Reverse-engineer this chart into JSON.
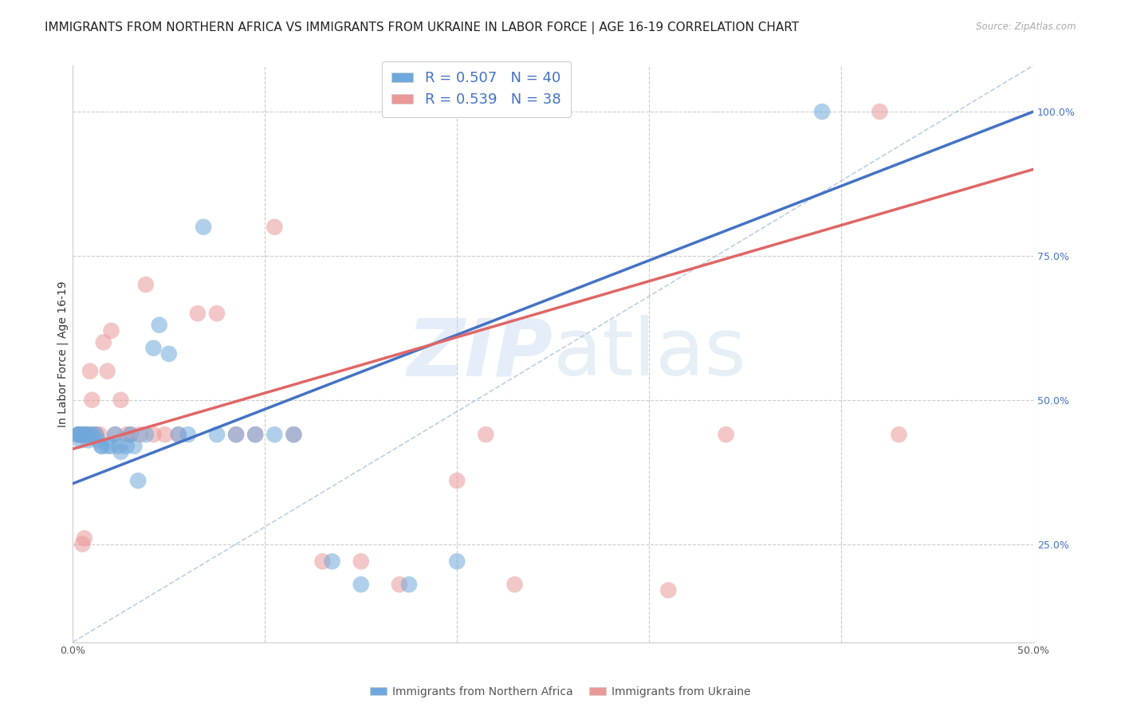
{
  "title": "IMMIGRANTS FROM NORTHERN AFRICA VS IMMIGRANTS FROM UKRAINE IN LABOR FORCE | AGE 16-19 CORRELATION CHART",
  "source": "Source: ZipAtlas.com",
  "ylabel": "In Labor Force | Age 16-19",
  "xlim": [
    0.0,
    0.5
  ],
  "ylim": [
    0.08,
    1.08
  ],
  "x_ticks": [
    0.0,
    0.1,
    0.2,
    0.3,
    0.4,
    0.5
  ],
  "x_tick_labels": [
    "0.0%",
    "",
    "",
    "",
    "",
    "50.0%"
  ],
  "y_tick_labels_right": [
    "25.0%",
    "50.0%",
    "75.0%",
    "100.0%"
  ],
  "y_ticks_right": [
    0.25,
    0.5,
    0.75,
    1.0
  ],
  "blue_R": 0.507,
  "blue_N": 40,
  "pink_R": 0.539,
  "pink_N": 38,
  "blue_color": "#6fa8dc",
  "pink_color": "#ea9999",
  "blue_line_color": "#4472c4",
  "pink_line_color": "#e06666",
  "diagonal_color": "#aac4e0",
  "legend_label_blue": "Immigrants from Northern Africa",
  "legend_label_pink": "Immigrants from Ukraine",
  "blue_scatter_x": [
    0.003,
    0.003,
    0.003,
    0.004,
    0.005,
    0.006,
    0.007,
    0.008,
    0.009,
    0.01,
    0.012,
    0.013,
    0.015,
    0.015,
    0.018,
    0.02,
    0.022,
    0.024,
    0.025,
    0.028,
    0.03,
    0.032,
    0.034,
    0.038,
    0.042,
    0.045,
    0.05,
    0.055,
    0.06,
    0.068,
    0.075,
    0.085,
    0.095,
    0.105,
    0.115,
    0.135,
    0.15,
    0.175,
    0.2,
    0.39
  ],
  "blue_scatter_y": [
    0.44,
    0.44,
    0.44,
    0.43,
    0.44,
    0.44,
    0.44,
    0.43,
    0.44,
    0.44,
    0.44,
    0.43,
    0.42,
    0.42,
    0.42,
    0.42,
    0.44,
    0.42,
    0.41,
    0.42,
    0.44,
    0.42,
    0.36,
    0.44,
    0.59,
    0.63,
    0.58,
    0.44,
    0.44,
    0.8,
    0.44,
    0.44,
    0.44,
    0.44,
    0.44,
    0.22,
    0.18,
    0.18,
    0.22,
    1.0
  ],
  "pink_scatter_x": [
    0.003,
    0.004,
    0.005,
    0.006,
    0.007,
    0.008,
    0.009,
    0.01,
    0.012,
    0.014,
    0.016,
    0.018,
    0.02,
    0.022,
    0.025,
    0.028,
    0.03,
    0.035,
    0.038,
    0.042,
    0.048,
    0.055,
    0.065,
    0.075,
    0.085,
    0.095,
    0.105,
    0.115,
    0.13,
    0.15,
    0.17,
    0.2,
    0.215,
    0.23,
    0.31,
    0.34,
    0.42,
    0.43
  ],
  "pink_scatter_y": [
    0.44,
    0.44,
    0.25,
    0.26,
    0.44,
    0.44,
    0.55,
    0.5,
    0.44,
    0.44,
    0.6,
    0.55,
    0.62,
    0.44,
    0.5,
    0.44,
    0.44,
    0.44,
    0.7,
    0.44,
    0.44,
    0.44,
    0.65,
    0.65,
    0.44,
    0.44,
    0.8,
    0.44,
    0.22,
    0.22,
    0.18,
    0.36,
    0.44,
    0.18,
    0.17,
    0.44,
    1.0,
    0.44
  ],
  "watermark_zip": "ZIP",
  "watermark_atlas": "atlas",
  "title_fontsize": 11,
  "axis_label_fontsize": 10,
  "tick_fontsize": 9,
  "blue_line_x0": 0.0,
  "blue_line_y0": 0.355,
  "blue_line_x1": 0.5,
  "blue_line_y1": 1.0,
  "pink_line_x0": 0.0,
  "pink_line_y0": 0.415,
  "pink_line_x1": 0.5,
  "pink_line_y1": 0.9
}
